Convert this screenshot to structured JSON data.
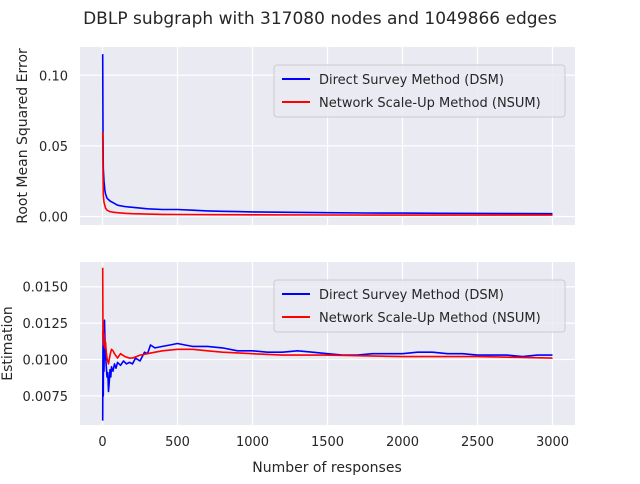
{
  "figure": {
    "title": "DBLP subgraph with 317080 nodes and 1049866 edges",
    "xlabel": "Number of responses"
  },
  "colors": {
    "panel_bg": "#eaeaf2",
    "grid": "#ffffff",
    "dsm": "#0000ff",
    "nsum": "#ff0000",
    "text": "#262626"
  },
  "chart_data": [
    {
      "type": "line",
      "ylabel": "Root Mean Squared Error",
      "xlim": [
        -150,
        3150
      ],
      "ylim": [
        -0.006,
        0.12
      ],
      "xticks": [
        0,
        500,
        1000,
        1500,
        2000,
        2500,
        3000
      ],
      "yticks": [
        0.0,
        0.05,
        0.1
      ],
      "ytick_labels": [
        "0.00",
        "0.05",
        "0.10"
      ],
      "xtick_labels_visible": false,
      "grid": true,
      "legend": {
        "position": "top-right"
      },
      "series": [
        {
          "name": "Direct Survey Method (DSM)",
          "color": "#0000ff",
          "x": [
            1,
            3,
            5,
            10,
            15,
            20,
            30,
            50,
            75,
            100,
            150,
            200,
            300,
            400,
            500,
            600,
            700,
            800,
            900,
            1000,
            1250,
            1500,
            1750,
            2000,
            2250,
            2500,
            2750,
            3000
          ],
          "y": [
            0.115,
            0.06,
            0.034,
            0.025,
            0.019,
            0.016,
            0.013,
            0.011,
            0.0095,
            0.008,
            0.007,
            0.0065,
            0.0055,
            0.005,
            0.005,
            0.0045,
            0.004,
            0.0037,
            0.0035,
            0.0033,
            0.003,
            0.0027,
            0.0025,
            0.0024,
            0.0023,
            0.0022,
            0.0021,
            0.002
          ]
        },
        {
          "name": "Network Scale-Up Method (NSUM)",
          "color": "#ff0000",
          "x": [
            1,
            3,
            5,
            10,
            15,
            20,
            30,
            50,
            75,
            100,
            150,
            200,
            300,
            400,
            500,
            750,
            1000,
            1500,
            2000,
            2500,
            3000
          ],
          "y": [
            0.06,
            0.03,
            0.015,
            0.01,
            0.008,
            0.006,
            0.0045,
            0.0035,
            0.003,
            0.0027,
            0.0023,
            0.002,
            0.0017,
            0.0015,
            0.0014,
            0.0013,
            0.0012,
            0.0011,
            0.001,
            0.001,
            0.001
          ]
        }
      ]
    },
    {
      "type": "line",
      "ylabel": "Estimation",
      "xlim": [
        -150,
        3150
      ],
      "ylim": [
        0.0055,
        0.0167
      ],
      "xticks": [
        0,
        500,
        1000,
        1500,
        2000,
        2500,
        3000
      ],
      "xtick_labels": [
        "0",
        "500",
        "1000",
        "1500",
        "2000",
        "2500",
        "3000"
      ],
      "yticks": [
        0.0075,
        0.01,
        0.0125,
        0.015
      ],
      "ytick_labels": [
        "0.0075",
        "0.0100",
        "0.0125",
        "0.0150"
      ],
      "grid": true,
      "legend": {
        "position": "top-right"
      },
      "series": [
        {
          "name": "Direct Survey Method (DSM)",
          "color": "#0000ff",
          "x": [
            1,
            3,
            5,
            7,
            10,
            13,
            16,
            20,
            25,
            30,
            35,
            40,
            45,
            50,
            55,
            60,
            70,
            80,
            90,
            100,
            120,
            140,
            160,
            180,
            200,
            220,
            250,
            280,
            300,
            320,
            350,
            400,
            450,
            500,
            550,
            600,
            700,
            800,
            900,
            1000,
            1100,
            1200,
            1300,
            1400,
            1500,
            1600,
            1700,
            1800,
            1900,
            2000,
            2100,
            2200,
            2300,
            2400,
            2500,
            2600,
            2700,
            2800,
            2900,
            3000
          ],
          "y": [
            0.0058,
            0.012,
            0.0075,
            0.0125,
            0.0092,
            0.0127,
            0.0115,
            0.0103,
            0.0095,
            0.0088,
            0.0091,
            0.0078,
            0.0085,
            0.0093,
            0.0088,
            0.0095,
            0.0092,
            0.0097,
            0.0094,
            0.0098,
            0.0096,
            0.0099,
            0.0097,
            0.0098,
            0.0097,
            0.0101,
            0.0099,
            0.0105,
            0.0104,
            0.011,
            0.0108,
            0.0109,
            0.011,
            0.0111,
            0.011,
            0.0109,
            0.0109,
            0.0108,
            0.0106,
            0.0106,
            0.0105,
            0.0105,
            0.0106,
            0.0105,
            0.0104,
            0.0103,
            0.0103,
            0.0104,
            0.0104,
            0.0104,
            0.0105,
            0.0105,
            0.0104,
            0.0104,
            0.0103,
            0.0103,
            0.0103,
            0.0102,
            0.0103,
            0.0103
          ]
        },
        {
          "name": "Network Scale-Up Method (NSUM)",
          "color": "#ff0000",
          "x": [
            1,
            3,
            5,
            7,
            10,
            15,
            20,
            25,
            30,
            40,
            50,
            60,
            70,
            80,
            100,
            120,
            150,
            180,
            200,
            250,
            300,
            350,
            400,
            500,
            600,
            700,
            800,
            1000,
            1200,
            1500,
            2000,
            2500,
            3000
          ],
          "y": [
            0.0163,
            0.0115,
            0.0125,
            0.011,
            0.0118,
            0.0108,
            0.0112,
            0.0105,
            0.0101,
            0.0097,
            0.0103,
            0.0107,
            0.0106,
            0.0104,
            0.0101,
            0.0104,
            0.0102,
            0.0101,
            0.0101,
            0.0103,
            0.0104,
            0.0105,
            0.0106,
            0.0107,
            0.0107,
            0.0106,
            0.0105,
            0.0104,
            0.0103,
            0.0103,
            0.0102,
            0.0102,
            0.0101
          ]
        }
      ]
    }
  ]
}
